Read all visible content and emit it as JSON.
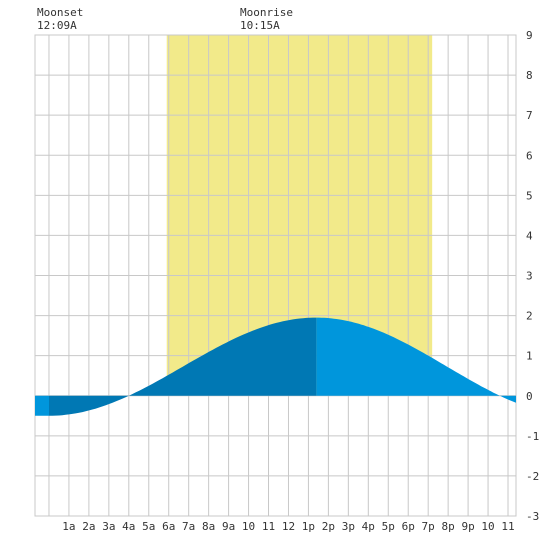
{
  "colors": {
    "daylight": "#f2ea8a",
    "grid": "#c8c8c8",
    "tide_dark": "#0078b4",
    "tide_light": "#0096dc",
    "text": "#333333"
  },
  "header": {
    "moonset": {
      "label": "Moonset",
      "time": "12:09A"
    },
    "moonrise": {
      "label": "Moonrise",
      "time": "10:15A"
    }
  },
  "chart_data": {
    "type": "area",
    "x_unit": "hour_of_day",
    "xlim": [
      -0.7,
      23.4
    ],
    "ylim": [
      -3,
      9
    ],
    "grid": true,
    "x_tick_labels": [
      "1a",
      "2a",
      "3a",
      "4a",
      "5a",
      "6a",
      "7a",
      "8a",
      "9a",
      "10",
      "11",
      "12",
      "1p",
      "2p",
      "3p",
      "4p",
      "5p",
      "6p",
      "7p",
      "8p",
      "9p",
      "10",
      "11"
    ],
    "y_ticks": [
      9,
      8,
      7,
      6,
      5,
      4,
      3,
      2,
      1,
      0,
      -1,
      -2,
      -3
    ],
    "daylight": {
      "start": 5.9,
      "end": 19.2
    },
    "moonset_hour": 0.15,
    "moonrise_hour": 10.25,
    "tide": {
      "low": {
        "hour": 0.0,
        "height": -0.5
      },
      "high": {
        "hour": 13.4,
        "height": 1.95
      },
      "low2": {
        "hour": 26.5,
        "height": -0.5
      }
    }
  }
}
